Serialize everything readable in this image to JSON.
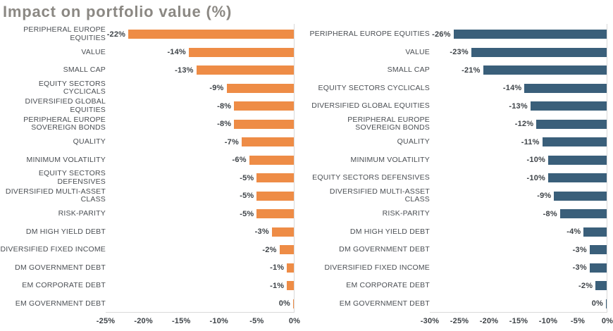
{
  "title": "Impact on portfolio value (%)",
  "colors": {
    "title_gray": "#8b8883",
    "label_gray": "#4a4e53",
    "value_dark": "#3e4348",
    "axis_line": "#d9d9d9",
    "orange": "#ee8c46",
    "steel_blue": "#3a5f7a"
  },
  "chart_data": [
    {
      "type": "bar",
      "orientation": "horizontal",
      "title": "Impact on portfolio value (%)",
      "bar_color": "#ee8c46",
      "xlim": [
        -25,
        0
      ],
      "grid": false,
      "legend": "none",
      "categories": [
        "PERIPHERAL EUROPE EQUITIES",
        "VALUE",
        "SMALL CAP",
        "EQUITY SECTORS CYCLICALS",
        "DIVERSIFIED GLOBAL EQUITIES",
        "PERIPHERAL EUROPE SOVEREIGN BONDS",
        "QUALITY",
        "MINIMUM VOLATILITY",
        "EQUITY SECTORS DEFENSIVES",
        "DIVERSIFIED MULTI-ASSET CLASS",
        "RISK-PARITY",
        "DM HIGH YIELD DEBT",
        "DIVERSIFIED FIXED INCOME",
        "DM GOVERNMENT DEBT",
        "EM CORPORATE DEBT",
        "EM GOVERNMENT DEBT"
      ],
      "values": [
        -22,
        -14,
        -13,
        -9,
        -8,
        -8,
        -7,
        -6,
        -5,
        -5,
        -5,
        -3,
        -2,
        -1,
        -1,
        0
      ],
      "data_labels": [
        "-22%",
        "-14%",
        "-13%",
        "-9%",
        "-8%",
        "-8%",
        "-7%",
        "-6%",
        "-5%",
        "-5%",
        "-5%",
        "-3%",
        "-2%",
        "-1%",
        "-1%",
        "0%"
      ],
      "ticks": [
        {
          "label": "-25%",
          "value": -25
        },
        {
          "label": "-20%",
          "value": -20
        },
        {
          "label": "-15%",
          "value": -15
        },
        {
          "label": "-10%",
          "value": -10
        },
        {
          "label": "-5%",
          "value": -5
        },
        {
          "label": "0%",
          "value": 0
        }
      ]
    },
    {
      "type": "bar",
      "orientation": "horizontal",
      "title": "",
      "bar_color": "#3a5f7a",
      "xlim": [
        -30,
        0
      ],
      "grid": false,
      "legend": "none",
      "categories": [
        "PERIPHERAL EUROPE EQUITIES",
        "VALUE",
        "SMALL CAP",
        "EQUITY SECTORS CYCLICALS",
        "DIVERSIFIED GLOBAL EQUITIES",
        "PERIPHERAL EUROPE SOVEREIGN BONDS",
        "QUALITY",
        "MINIMUM VOLATILITY",
        "EQUITY SECTORS DEFENSIVES",
        "DIVERSIFIED MULTI-ASSET CLASS",
        "RISK-PARITY",
        "DM HIGH YIELD DEBT",
        "DM GOVERNMENT DEBT",
        "DIVERSIFIED FIXED INCOME",
        "EM CORPORATE DEBT",
        "EM GOVERNMENT DEBT"
      ],
      "values": [
        -26,
        -23,
        -21,
        -14,
        -13,
        -12,
        -11,
        -10,
        -10,
        -9,
        -8,
        -4,
        -3,
        -3,
        -2,
        0
      ],
      "data_labels": [
        "-26%",
        "-23%",
        "-21%",
        "-14%",
        "-13%",
        "-12%",
        "-11%",
        "-10%",
        "-10%",
        "-9%",
        "-8%",
        "-4%",
        "-3%",
        "-3%",
        "-2%",
        "0%"
      ],
      "ticks": [
        {
          "label": "-30%",
          "value": -30
        },
        {
          "label": "-25%",
          "value": -25
        },
        {
          "label": "-20%",
          "value": -20
        },
        {
          "label": "-15%",
          "value": -15
        },
        {
          "label": "-10%",
          "value": -10
        },
        {
          "label": "-5%",
          "value": -5
        },
        {
          "label": "0%",
          "value": 0
        }
      ]
    }
  ]
}
